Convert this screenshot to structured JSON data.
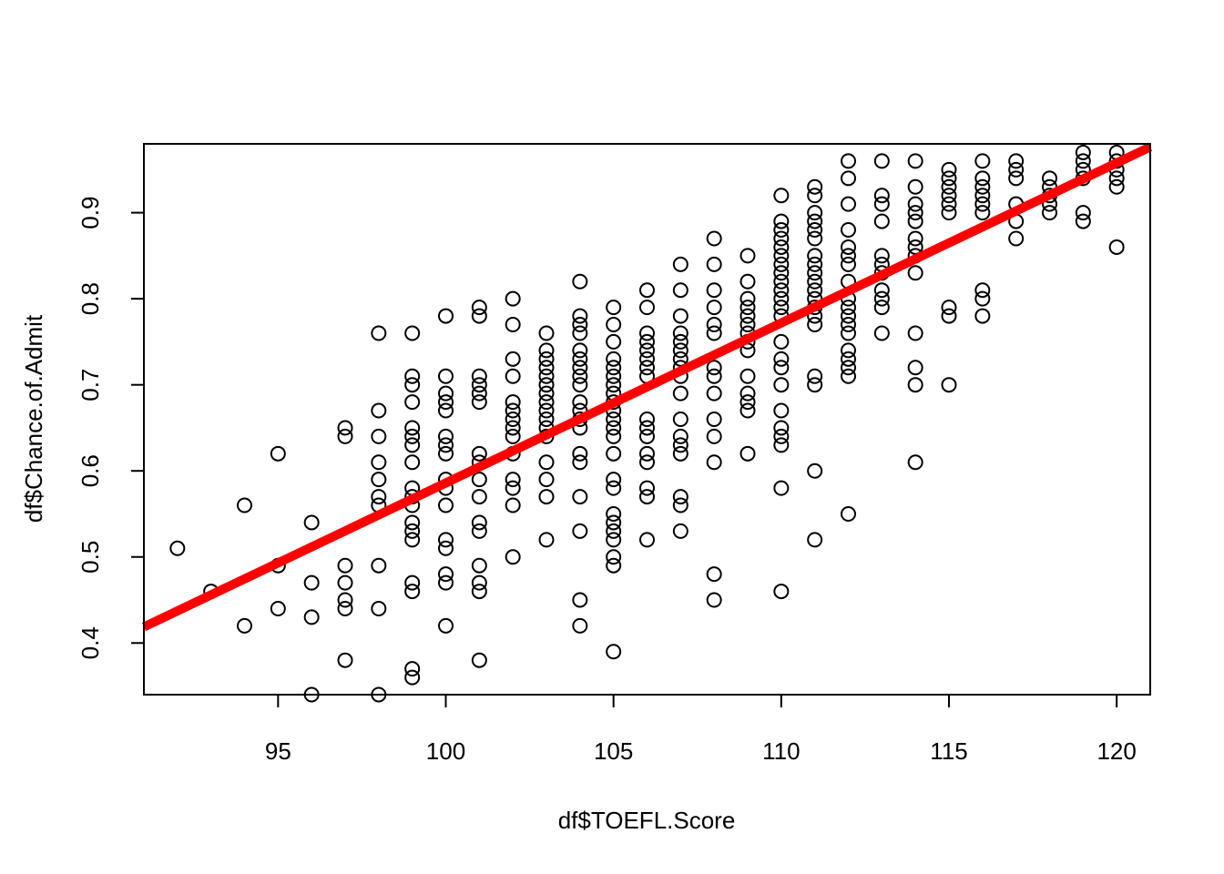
{
  "chart_data": {
    "type": "scatter",
    "title": "",
    "xlabel": "df$TOEFL.Score",
    "ylabel": "df$Chance.of.Admit",
    "xlim": [
      91,
      121
    ],
    "ylim": [
      0.34,
      0.98
    ],
    "x_ticks": [
      95,
      100,
      105,
      110,
      115,
      120
    ],
    "y_ticks": [
      0.4,
      0.5,
      0.6,
      0.7,
      0.8,
      0.9
    ],
    "x_tick_labels": [
      "95",
      "100",
      "105",
      "110",
      "115",
      "120"
    ],
    "y_tick_labels": [
      "0.4",
      "0.5",
      "0.6",
      "0.7",
      "0.8",
      "0.9"
    ],
    "grid": false,
    "legend": "none",
    "point_color": "#000000",
    "fit_line": {
      "color": "#ff0000",
      "intercept": -1.273,
      "slope": 0.01859
    },
    "points": [
      [
        92,
        0.51
      ],
      [
        93,
        0.46
      ],
      [
        94,
        0.56
      ],
      [
        94,
        0.42
      ],
      [
        95,
        0.62
      ],
      [
        95,
        0.49
      ],
      [
        95,
        0.44
      ],
      [
        96,
        0.54
      ],
      [
        96,
        0.47
      ],
      [
        96,
        0.43
      ],
      [
        96,
        0.34
      ],
      [
        97,
        0.65
      ],
      [
        97,
        0.64
      ],
      [
        97,
        0.49
      ],
      [
        97,
        0.47
      ],
      [
        97,
        0.45
      ],
      [
        97,
        0.44
      ],
      [
        97,
        0.38
      ],
      [
        98,
        0.76
      ],
      [
        98,
        0.67
      ],
      [
        98,
        0.64
      ],
      [
        98,
        0.61
      ],
      [
        98,
        0.59
      ],
      [
        98,
        0.57
      ],
      [
        98,
        0.56
      ],
      [
        98,
        0.49
      ],
      [
        98,
        0.44
      ],
      [
        98,
        0.34
      ],
      [
        99,
        0.76
      ],
      [
        99,
        0.71
      ],
      [
        99,
        0.7
      ],
      [
        99,
        0.68
      ],
      [
        99,
        0.65
      ],
      [
        99,
        0.64
      ],
      [
        99,
        0.63
      ],
      [
        99,
        0.61
      ],
      [
        99,
        0.58
      ],
      [
        99,
        0.57
      ],
      [
        99,
        0.56
      ],
      [
        99,
        0.54
      ],
      [
        99,
        0.53
      ],
      [
        99,
        0.52
      ],
      [
        99,
        0.47
      ],
      [
        99,
        0.46
      ],
      [
        99,
        0.37
      ],
      [
        99,
        0.36
      ],
      [
        100,
        0.78
      ],
      [
        100,
        0.71
      ],
      [
        100,
        0.69
      ],
      [
        100,
        0.68
      ],
      [
        100,
        0.67
      ],
      [
        100,
        0.64
      ],
      [
        100,
        0.63
      ],
      [
        100,
        0.62
      ],
      [
        100,
        0.59
      ],
      [
        100,
        0.58
      ],
      [
        100,
        0.56
      ],
      [
        100,
        0.52
      ],
      [
        100,
        0.51
      ],
      [
        100,
        0.48
      ],
      [
        100,
        0.47
      ],
      [
        100,
        0.42
      ],
      [
        101,
        0.79
      ],
      [
        101,
        0.78
      ],
      [
        101,
        0.71
      ],
      [
        101,
        0.7
      ],
      [
        101,
        0.69
      ],
      [
        101,
        0.68
      ],
      [
        101,
        0.62
      ],
      [
        101,
        0.61
      ],
      [
        101,
        0.59
      ],
      [
        101,
        0.57
      ],
      [
        101,
        0.54
      ],
      [
        101,
        0.53
      ],
      [
        101,
        0.49
      ],
      [
        101,
        0.47
      ],
      [
        101,
        0.46
      ],
      [
        101,
        0.38
      ],
      [
        102,
        0.8
      ],
      [
        102,
        0.77
      ],
      [
        102,
        0.73
      ],
      [
        102,
        0.71
      ],
      [
        102,
        0.68
      ],
      [
        102,
        0.67
      ],
      [
        102,
        0.66
      ],
      [
        102,
        0.65
      ],
      [
        102,
        0.64
      ],
      [
        102,
        0.62
      ],
      [
        102,
        0.59
      ],
      [
        102,
        0.58
      ],
      [
        102,
        0.56
      ],
      [
        102,
        0.5
      ],
      [
        103,
        0.76
      ],
      [
        103,
        0.74
      ],
      [
        103,
        0.73
      ],
      [
        103,
        0.72
      ],
      [
        103,
        0.71
      ],
      [
        103,
        0.7
      ],
      [
        103,
        0.69
      ],
      [
        103,
        0.68
      ],
      [
        103,
        0.67
      ],
      [
        103,
        0.66
      ],
      [
        103,
        0.65
      ],
      [
        103,
        0.64
      ],
      [
        103,
        0.61
      ],
      [
        103,
        0.59
      ],
      [
        103,
        0.57
      ],
      [
        103,
        0.52
      ],
      [
        104,
        0.82
      ],
      [
        104,
        0.78
      ],
      [
        104,
        0.77
      ],
      [
        104,
        0.76
      ],
      [
        104,
        0.74
      ],
      [
        104,
        0.73
      ],
      [
        104,
        0.72
      ],
      [
        104,
        0.71
      ],
      [
        104,
        0.7
      ],
      [
        104,
        0.68
      ],
      [
        104,
        0.67
      ],
      [
        104,
        0.66
      ],
      [
        104,
        0.65
      ],
      [
        104,
        0.62
      ],
      [
        104,
        0.61
      ],
      [
        104,
        0.57
      ],
      [
        104,
        0.53
      ],
      [
        104,
        0.45
      ],
      [
        104,
        0.42
      ],
      [
        105,
        0.79
      ],
      [
        105,
        0.77
      ],
      [
        105,
        0.75
      ],
      [
        105,
        0.73
      ],
      [
        105,
        0.72
      ],
      [
        105,
        0.71
      ],
      [
        105,
        0.7
      ],
      [
        105,
        0.69
      ],
      [
        105,
        0.68
      ],
      [
        105,
        0.67
      ],
      [
        105,
        0.66
      ],
      [
        105,
        0.65
      ],
      [
        105,
        0.64
      ],
      [
        105,
        0.62
      ],
      [
        105,
        0.59
      ],
      [
        105,
        0.58
      ],
      [
        105,
        0.55
      ],
      [
        105,
        0.54
      ],
      [
        105,
        0.53
      ],
      [
        105,
        0.52
      ],
      [
        105,
        0.5
      ],
      [
        105,
        0.49
      ],
      [
        105,
        0.39
      ],
      [
        106,
        0.81
      ],
      [
        106,
        0.79
      ],
      [
        106,
        0.76
      ],
      [
        106,
        0.75
      ],
      [
        106,
        0.74
      ],
      [
        106,
        0.73
      ],
      [
        106,
        0.72
      ],
      [
        106,
        0.71
      ],
      [
        106,
        0.66
      ],
      [
        106,
        0.65
      ],
      [
        106,
        0.64
      ],
      [
        106,
        0.62
      ],
      [
        106,
        0.61
      ],
      [
        106,
        0.58
      ],
      [
        106,
        0.57
      ],
      [
        106,
        0.52
      ],
      [
        107,
        0.84
      ],
      [
        107,
        0.81
      ],
      [
        107,
        0.78
      ],
      [
        107,
        0.76
      ],
      [
        107,
        0.75
      ],
      [
        107,
        0.74
      ],
      [
        107,
        0.73
      ],
      [
        107,
        0.72
      ],
      [
        107,
        0.71
      ],
      [
        107,
        0.69
      ],
      [
        107,
        0.66
      ],
      [
        107,
        0.64
      ],
      [
        107,
        0.63
      ],
      [
        107,
        0.62
      ],
      [
        107,
        0.57
      ],
      [
        107,
        0.56
      ],
      [
        107,
        0.53
      ],
      [
        108,
        0.87
      ],
      [
        108,
        0.84
      ],
      [
        108,
        0.81
      ],
      [
        108,
        0.79
      ],
      [
        108,
        0.77
      ],
      [
        108,
        0.76
      ],
      [
        108,
        0.72
      ],
      [
        108,
        0.71
      ],
      [
        108,
        0.69
      ],
      [
        108,
        0.66
      ],
      [
        108,
        0.64
      ],
      [
        108,
        0.61
      ],
      [
        108,
        0.48
      ],
      [
        108,
        0.45
      ],
      [
        109,
        0.85
      ],
      [
        109,
        0.82
      ],
      [
        109,
        0.8
      ],
      [
        109,
        0.79
      ],
      [
        109,
        0.78
      ],
      [
        109,
        0.77
      ],
      [
        109,
        0.76
      ],
      [
        109,
        0.75
      ],
      [
        109,
        0.74
      ],
      [
        109,
        0.71
      ],
      [
        109,
        0.69
      ],
      [
        109,
        0.68
      ],
      [
        109,
        0.67
      ],
      [
        109,
        0.62
      ],
      [
        110,
        0.92
      ],
      [
        110,
        0.89
      ],
      [
        110,
        0.88
      ],
      [
        110,
        0.87
      ],
      [
        110,
        0.86
      ],
      [
        110,
        0.85
      ],
      [
        110,
        0.84
      ],
      [
        110,
        0.83
      ],
      [
        110,
        0.82
      ],
      [
        110,
        0.81
      ],
      [
        110,
        0.8
      ],
      [
        110,
        0.79
      ],
      [
        110,
        0.78
      ],
      [
        110,
        0.75
      ],
      [
        110,
        0.73
      ],
      [
        110,
        0.72
      ],
      [
        110,
        0.7
      ],
      [
        110,
        0.67
      ],
      [
        110,
        0.65
      ],
      [
        110,
        0.64
      ],
      [
        110,
        0.63
      ],
      [
        110,
        0.58
      ],
      [
        110,
        0.46
      ],
      [
        111,
        0.93
      ],
      [
        111,
        0.92
      ],
      [
        111,
        0.9
      ],
      [
        111,
        0.89
      ],
      [
        111,
        0.88
      ],
      [
        111,
        0.87
      ],
      [
        111,
        0.85
      ],
      [
        111,
        0.84
      ],
      [
        111,
        0.83
      ],
      [
        111,
        0.82
      ],
      [
        111,
        0.81
      ],
      [
        111,
        0.8
      ],
      [
        111,
        0.79
      ],
      [
        111,
        0.78
      ],
      [
        111,
        0.77
      ],
      [
        111,
        0.71
      ],
      [
        111,
        0.7
      ],
      [
        111,
        0.6
      ],
      [
        111,
        0.52
      ],
      [
        112,
        0.96
      ],
      [
        112,
        0.94
      ],
      [
        112,
        0.91
      ],
      [
        112,
        0.88
      ],
      [
        112,
        0.86
      ],
      [
        112,
        0.85
      ],
      [
        112,
        0.84
      ],
      [
        112,
        0.82
      ],
      [
        112,
        0.8
      ],
      [
        112,
        0.79
      ],
      [
        112,
        0.78
      ],
      [
        112,
        0.77
      ],
      [
        112,
        0.76
      ],
      [
        112,
        0.74
      ],
      [
        112,
        0.73
      ],
      [
        112,
        0.72
      ],
      [
        112,
        0.71
      ],
      [
        112,
        0.55
      ],
      [
        113,
        0.96
      ],
      [
        113,
        0.92
      ],
      [
        113,
        0.91
      ],
      [
        113,
        0.89
      ],
      [
        113,
        0.85
      ],
      [
        113,
        0.84
      ],
      [
        113,
        0.83
      ],
      [
        113,
        0.81
      ],
      [
        113,
        0.8
      ],
      [
        113,
        0.79
      ],
      [
        113,
        0.76
      ],
      [
        114,
        0.96
      ],
      [
        114,
        0.93
      ],
      [
        114,
        0.91
      ],
      [
        114,
        0.9
      ],
      [
        114,
        0.89
      ],
      [
        114,
        0.87
      ],
      [
        114,
        0.86
      ],
      [
        114,
        0.85
      ],
      [
        114,
        0.83
      ],
      [
        114,
        0.76
      ],
      [
        114,
        0.72
      ],
      [
        114,
        0.7
      ],
      [
        114,
        0.61
      ],
      [
        115,
        0.95
      ],
      [
        115,
        0.94
      ],
      [
        115,
        0.93
      ],
      [
        115,
        0.92
      ],
      [
        115,
        0.91
      ],
      [
        115,
        0.9
      ],
      [
        115,
        0.79
      ],
      [
        115,
        0.78
      ],
      [
        115,
        0.7
      ],
      [
        116,
        0.96
      ],
      [
        116,
        0.94
      ],
      [
        116,
        0.93
      ],
      [
        116,
        0.92
      ],
      [
        116,
        0.91
      ],
      [
        116,
        0.9
      ],
      [
        116,
        0.81
      ],
      [
        116,
        0.8
      ],
      [
        116,
        0.78
      ],
      [
        117,
        0.96
      ],
      [
        117,
        0.95
      ],
      [
        117,
        0.94
      ],
      [
        117,
        0.91
      ],
      [
        117,
        0.89
      ],
      [
        117,
        0.87
      ],
      [
        118,
        0.94
      ],
      [
        118,
        0.93
      ],
      [
        118,
        0.92
      ],
      [
        118,
        0.91
      ],
      [
        118,
        0.9
      ],
      [
        119,
        0.97
      ],
      [
        119,
        0.96
      ],
      [
        119,
        0.95
      ],
      [
        119,
        0.94
      ],
      [
        119,
        0.9
      ],
      [
        119,
        0.89
      ],
      [
        120,
        0.97
      ],
      [
        120,
        0.96
      ],
      [
        120,
        0.95
      ],
      [
        120,
        0.94
      ],
      [
        120,
        0.93
      ],
      [
        120,
        0.86
      ]
    ]
  }
}
